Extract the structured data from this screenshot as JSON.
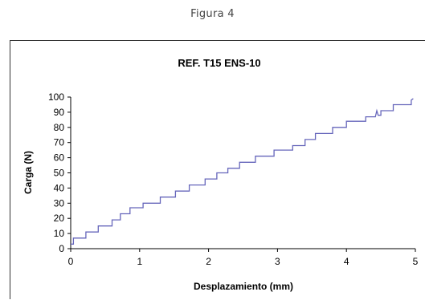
{
  "caption": "Figura 4",
  "colors": {
    "series": "#6666bb",
    "axis": "#000000",
    "frame": "#333333"
  },
  "chart_data": {
    "type": "line",
    "title": "REF. T15 ENS-10",
    "xlabel": "Desplazamiento (mm)",
    "ylabel": "Carga (N)",
    "xlim": [
      0,
      5
    ],
    "ylim": [
      0,
      100
    ],
    "xticks": [
      0,
      1,
      2,
      3,
      4,
      5
    ],
    "yticks": [
      0,
      10,
      20,
      30,
      40,
      50,
      60,
      70,
      80,
      90,
      100
    ],
    "grid": false,
    "legend": "none",
    "series": [
      {
        "x": [
          0,
          0.04,
          0.04,
          0.22,
          0.22,
          0.4,
          0.4,
          0.6,
          0.6,
          0.72,
          0.72,
          0.86,
          0.86,
          1.05,
          1.05,
          1.3,
          1.3,
          1.52,
          1.52,
          1.72,
          1.72,
          1.95,
          1.95,
          2.12,
          2.12,
          2.28,
          2.28,
          2.45,
          2.45,
          2.68,
          2.68,
          2.95,
          2.95,
          3.22,
          3.22,
          3.4,
          3.4,
          3.55,
          3.55,
          3.8,
          3.8,
          4.0,
          4.0,
          4.28,
          4.28,
          4.42,
          4.44,
          4.46,
          4.5,
          4.5,
          4.68,
          4.68,
          4.94,
          4.94,
          4.97
        ],
        "y": [
          3,
          3,
          7,
          7,
          11,
          11,
          15,
          15,
          19,
          19,
          23,
          23,
          27,
          27,
          30,
          30,
          34,
          34,
          38,
          38,
          42,
          42,
          46,
          46,
          50,
          50,
          53,
          53,
          57,
          57,
          61,
          61,
          65,
          65,
          68,
          68,
          72,
          72,
          76,
          76,
          80,
          80,
          84,
          84,
          87,
          87,
          91,
          88,
          88,
          91,
          91,
          95,
          95,
          98,
          99
        ]
      }
    ]
  }
}
